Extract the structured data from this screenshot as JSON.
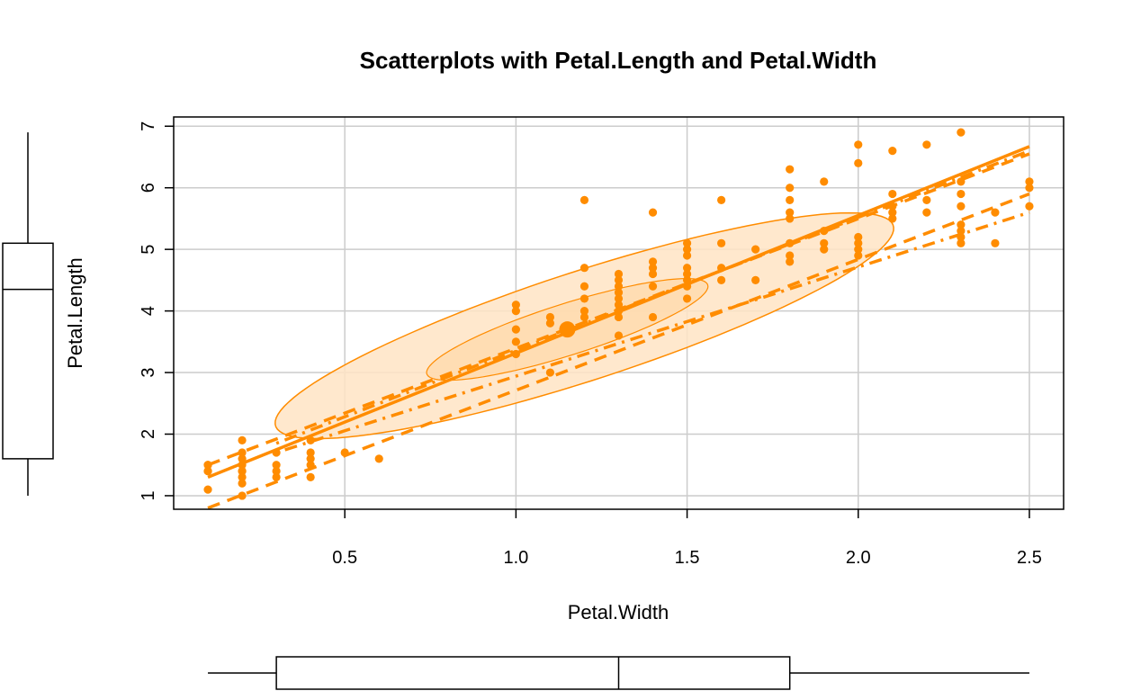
{
  "chart_data": {
    "type": "scatter",
    "title": "Scatterplots with Petal.Length and Petal.Width",
    "xlabel": "Petal.Width",
    "ylabel": "Petal.Length",
    "xlim": [
      0.0,
      2.6
    ],
    "ylim": [
      0.78,
      7.15
    ],
    "x_ticks": [
      "0.5",
      "1.0",
      "1.5",
      "2.0",
      "2.5"
    ],
    "y_ticks": [
      "1",
      "2",
      "3",
      "4",
      "5",
      "6",
      "7"
    ],
    "grid": true,
    "point_color": "#FF8C00",
    "fill_color": "#FFE4C4",
    "points": [
      [
        0.1,
        1.5
      ],
      [
        0.1,
        1.4
      ],
      [
        0.1,
        1.1
      ],
      [
        0.1,
        1.5
      ],
      [
        0.1,
        1.4
      ],
      [
        0.2,
        1.4
      ],
      [
        0.2,
        1.3
      ],
      [
        0.2,
        1.5
      ],
      [
        0.2,
        1.6
      ],
      [
        0.2,
        1.7
      ],
      [
        0.2,
        1.2
      ],
      [
        0.2,
        1.0
      ],
      [
        0.2,
        1.9
      ],
      [
        0.2,
        1.4
      ],
      [
        0.3,
        1.4
      ],
      [
        0.3,
        1.3
      ],
      [
        0.3,
        1.5
      ],
      [
        0.3,
        1.7
      ],
      [
        0.4,
        1.5
      ],
      [
        0.4,
        1.7
      ],
      [
        0.4,
        1.9
      ],
      [
        0.4,
        1.3
      ],
      [
        0.4,
        1.6
      ],
      [
        0.5,
        1.7
      ],
      [
        0.6,
        1.6
      ],
      [
        1.0,
        3.5
      ],
      [
        1.0,
        3.3
      ],
      [
        1.0,
        3.7
      ],
      [
        1.0,
        4.0
      ],
      [
        1.0,
        4.1
      ],
      [
        1.1,
        3.0
      ],
      [
        1.1,
        3.8
      ],
      [
        1.1,
        3.9
      ],
      [
        1.2,
        3.9
      ],
      [
        1.2,
        4.0
      ],
      [
        1.2,
        4.4
      ],
      [
        1.2,
        4.7
      ],
      [
        1.2,
        4.2
      ],
      [
        1.2,
        5.8
      ],
      [
        1.3,
        3.6
      ],
      [
        1.3,
        4.0
      ],
      [
        1.3,
        4.1
      ],
      [
        1.3,
        4.2
      ],
      [
        1.3,
        4.3
      ],
      [
        1.3,
        4.4
      ],
      [
        1.3,
        4.6
      ],
      [
        1.3,
        3.9
      ],
      [
        1.3,
        4.5
      ],
      [
        1.4,
        3.9
      ],
      [
        1.4,
        4.4
      ],
      [
        1.4,
        4.6
      ],
      [
        1.4,
        4.7
      ],
      [
        1.4,
        4.8
      ],
      [
        1.4,
        5.6
      ],
      [
        1.5,
        4.2
      ],
      [
        1.5,
        4.5
      ],
      [
        1.5,
        4.6
      ],
      [
        1.5,
        4.9
      ],
      [
        1.5,
        5.0
      ],
      [
        1.5,
        5.1
      ],
      [
        1.5,
        4.7
      ],
      [
        1.5,
        4.4
      ],
      [
        1.6,
        4.5
      ],
      [
        1.6,
        4.7
      ],
      [
        1.6,
        5.1
      ],
      [
        1.6,
        5.8
      ],
      [
        1.7,
        4.5
      ],
      [
        1.7,
        5.0
      ],
      [
        1.8,
        4.8
      ],
      [
        1.8,
        4.9
      ],
      [
        1.8,
        5.1
      ],
      [
        1.8,
        5.5
      ],
      [
        1.8,
        5.6
      ],
      [
        1.8,
        5.8
      ],
      [
        1.8,
        6.0
      ],
      [
        1.8,
        6.3
      ],
      [
        1.9,
        5.0
      ],
      [
        1.9,
        5.1
      ],
      [
        1.9,
        5.3
      ],
      [
        1.9,
        6.1
      ],
      [
        2.0,
        4.9
      ],
      [
        2.0,
        5.0
      ],
      [
        2.0,
        5.1
      ],
      [
        2.0,
        5.2
      ],
      [
        2.0,
        6.4
      ],
      [
        2.0,
        6.7
      ],
      [
        2.1,
        5.5
      ],
      [
        2.1,
        5.6
      ],
      [
        2.1,
        5.7
      ],
      [
        2.1,
        5.9
      ],
      [
        2.1,
        6.6
      ],
      [
        2.2,
        5.6
      ],
      [
        2.2,
        5.8
      ],
      [
        2.2,
        6.7
      ],
      [
        2.3,
        5.1
      ],
      [
        2.3,
        5.2
      ],
      [
        2.3,
        5.3
      ],
      [
        2.3,
        5.4
      ],
      [
        2.3,
        5.7
      ],
      [
        2.3,
        5.9
      ],
      [
        2.3,
        6.1
      ],
      [
        2.3,
        6.9
      ],
      [
        2.4,
        5.1
      ],
      [
        2.4,
        5.6
      ],
      [
        2.5,
        5.7
      ],
      [
        2.5,
        6.0
      ],
      [
        2.5,
        6.1
      ]
    ],
    "centroid": [
      1.15,
      3.7
    ],
    "regression_lines": [
      {
        "style": "solid",
        "x": [
          0.1,
          2.5
        ],
        "y": [
          1.3,
          6.67
        ]
      },
      {
        "style": "dashed",
        "x": [
          0.1,
          2.5
        ],
        "y": [
          1.5,
          6.55
        ]
      },
      {
        "style": "dashed",
        "x": [
          0.1,
          2.5
        ],
        "y": [
          0.8,
          5.9
        ]
      },
      {
        "style": "dotdash",
        "x": [
          0.3,
          2.5
        ],
        "y": [
          1.85,
          6.6
        ]
      },
      {
        "style": "dotdash",
        "x": [
          0.3,
          2.5
        ],
        "y": [
          1.7,
          5.6
        ]
      }
    ],
    "outer_ellipse": {
      "center": [
        1.2,
        3.76
      ],
      "rx": 2.0,
      "ry": 0.42,
      "slope": 2.23
    },
    "inner_ellipse": {
      "center": [
        1.15,
        3.7
      ],
      "rx": 0.9,
      "ry": 0.2,
      "slope": 2.23
    },
    "boxplot_x": {
      "min": 0.1,
      "q1": 0.3,
      "median": 1.3,
      "q3": 1.8,
      "max": 2.5
    },
    "boxplot_y": {
      "min": 1.0,
      "q1": 1.6,
      "median": 4.35,
      "q3": 5.1,
      "max": 6.9
    }
  }
}
